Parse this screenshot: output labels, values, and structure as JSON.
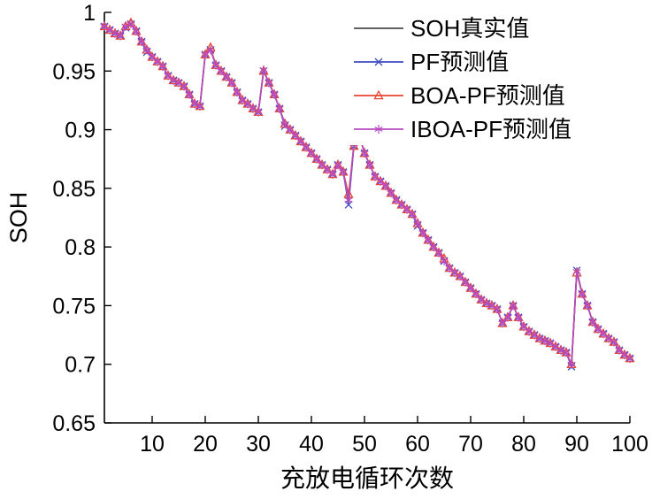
{
  "figure": {
    "xlabel": "充放电循环次数",
    "ylabel": "SOH"
  },
  "chart_data": {
    "type": "line",
    "title": "",
    "xlabel": "充放电循环次数",
    "ylabel": "SOH",
    "xlim": [
      1,
      100
    ],
    "ylim": [
      0.65,
      1.0
    ],
    "x_start": 1,
    "x_step": 1,
    "xticks": [
      10,
      20,
      30,
      40,
      50,
      60,
      70,
      80,
      90,
      100
    ],
    "yticks": [
      0.65,
      0.7,
      0.75,
      0.8,
      0.85,
      0.9,
      0.95,
      1
    ],
    "ytick_labels": [
      "0.65",
      "0.7",
      "0.75",
      "0.8",
      "0.85",
      "0.9",
      "0.95",
      "1"
    ],
    "grid": false,
    "legend_position": "top-right",
    "series": [
      {
        "id": "soh-true",
        "name": "SOH真实值",
        "color": "#4d4d4d",
        "marker": "none",
        "values": [
          0.988,
          0.985,
          0.982,
          0.98,
          0.988,
          0.99,
          0.984,
          0.975,
          0.968,
          0.962,
          0.958,
          0.954,
          0.946,
          0.942,
          0.94,
          0.937,
          0.93,
          0.922,
          0.92,
          0.964,
          0.968,
          0.955,
          0.95,
          0.945,
          0.94,
          0.932,
          0.925,
          0.922,
          0.918,
          0.915,
          0.95,
          0.94,
          0.93,
          0.918,
          0.905,
          0.9,
          0.895,
          0.89,
          0.885,
          0.88,
          0.875,
          0.87,
          0.866,
          0.862,
          0.87,
          0.864,
          0.84,
          0.886,
          0.896,
          0.88,
          0.87,
          0.86,
          0.856,
          0.852,
          0.846,
          0.84,
          0.836,
          0.832,
          0.828,
          0.82,
          0.812,
          0.806,
          0.8,
          0.795,
          0.788,
          0.782,
          0.778,
          0.775,
          0.77,
          0.765,
          0.76,
          0.755,
          0.752,
          0.75,
          0.747,
          0.735,
          0.74,
          0.75,
          0.74,
          0.732,
          0.728,
          0.725,
          0.722,
          0.72,
          0.718,
          0.715,
          0.712,
          0.71,
          0.7,
          0.78,
          0.76,
          0.75,
          0.736,
          0.73,
          0.726,
          0.722,
          0.719,
          0.712,
          0.708,
          0.705
        ]
      },
      {
        "id": "pf",
        "name": "PF预测值",
        "color": "#3b4cc0",
        "marker": "x",
        "values": [
          0.988,
          0.985,
          0.982,
          0.98,
          0.987,
          0.99,
          0.984,
          0.975,
          0.966,
          0.962,
          0.958,
          0.954,
          0.946,
          0.942,
          0.94,
          0.937,
          0.93,
          0.922,
          0.92,
          0.964,
          0.968,
          0.955,
          0.95,
          0.945,
          0.94,
          0.932,
          0.925,
          0.922,
          0.918,
          0.915,
          0.95,
          0.94,
          0.93,
          0.918,
          0.903,
          0.9,
          0.895,
          0.89,
          0.885,
          0.88,
          0.875,
          0.87,
          0.866,
          0.862,
          0.87,
          0.864,
          0.836,
          0.886,
          0.896,
          0.88,
          0.87,
          0.86,
          0.856,
          0.852,
          0.846,
          0.84,
          0.836,
          0.832,
          0.828,
          0.818,
          0.812,
          0.806,
          0.8,
          0.795,
          0.788,
          0.782,
          0.778,
          0.775,
          0.77,
          0.765,
          0.76,
          0.755,
          0.752,
          0.75,
          0.747,
          0.735,
          0.74,
          0.75,
          0.74,
          0.732,
          0.728,
          0.725,
          0.722,
          0.72,
          0.718,
          0.715,
          0.712,
          0.71,
          0.698,
          0.78,
          0.76,
          0.75,
          0.736,
          0.73,
          0.726,
          0.722,
          0.719,
          0.712,
          0.708,
          0.705
        ]
      },
      {
        "id": "boa-pf",
        "name": "BOA-PF预测值",
        "color": "#e8442e",
        "marker": "triangle",
        "values": [
          0.988,
          0.985,
          0.982,
          0.98,
          0.988,
          0.991,
          0.984,
          0.975,
          0.968,
          0.962,
          0.958,
          0.954,
          0.946,
          0.942,
          0.94,
          0.937,
          0.93,
          0.922,
          0.92,
          0.964,
          0.97,
          0.955,
          0.95,
          0.945,
          0.94,
          0.932,
          0.925,
          0.922,
          0.918,
          0.915,
          0.95,
          0.94,
          0.93,
          0.918,
          0.905,
          0.9,
          0.895,
          0.89,
          0.885,
          0.88,
          0.875,
          0.87,
          0.866,
          0.862,
          0.87,
          0.864,
          0.845,
          0.886,
          0.896,
          0.88,
          0.87,
          0.86,
          0.856,
          0.852,
          0.846,
          0.84,
          0.836,
          0.832,
          0.828,
          0.82,
          0.812,
          0.806,
          0.8,
          0.795,
          0.79,
          0.782,
          0.778,
          0.775,
          0.77,
          0.765,
          0.76,
          0.755,
          0.752,
          0.75,
          0.747,
          0.735,
          0.74,
          0.75,
          0.74,
          0.732,
          0.728,
          0.725,
          0.722,
          0.72,
          0.718,
          0.715,
          0.712,
          0.71,
          0.7,
          0.778,
          0.76,
          0.75,
          0.736,
          0.73,
          0.726,
          0.722,
          0.719,
          0.712,
          0.708,
          0.705
        ]
      },
      {
        "id": "iboa-pf",
        "name": "IBOA-PF预测值",
        "color": "#b84ac0",
        "marker": "asterisk",
        "values": [
          0.988,
          0.985,
          0.982,
          0.98,
          0.988,
          0.99,
          0.984,
          0.975,
          0.968,
          0.962,
          0.958,
          0.954,
          0.946,
          0.942,
          0.94,
          0.937,
          0.93,
          0.922,
          0.92,
          0.964,
          0.968,
          0.955,
          0.95,
          0.945,
          0.94,
          0.932,
          0.925,
          0.922,
          0.918,
          0.915,
          0.951,
          0.94,
          0.93,
          0.918,
          0.905,
          0.9,
          0.895,
          0.89,
          0.885,
          0.88,
          0.875,
          0.87,
          0.866,
          0.862,
          0.87,
          0.864,
          0.84,
          0.888,
          0.896,
          0.88,
          0.87,
          0.86,
          0.856,
          0.852,
          0.846,
          0.84,
          0.836,
          0.832,
          0.828,
          0.82,
          0.812,
          0.806,
          0.8,
          0.795,
          0.788,
          0.782,
          0.778,
          0.775,
          0.77,
          0.765,
          0.76,
          0.755,
          0.752,
          0.75,
          0.747,
          0.735,
          0.74,
          0.75,
          0.74,
          0.732,
          0.728,
          0.725,
          0.722,
          0.72,
          0.718,
          0.715,
          0.712,
          0.71,
          0.7,
          0.779,
          0.76,
          0.75,
          0.736,
          0.73,
          0.726,
          0.722,
          0.719,
          0.712,
          0.708,
          0.705
        ]
      }
    ]
  }
}
